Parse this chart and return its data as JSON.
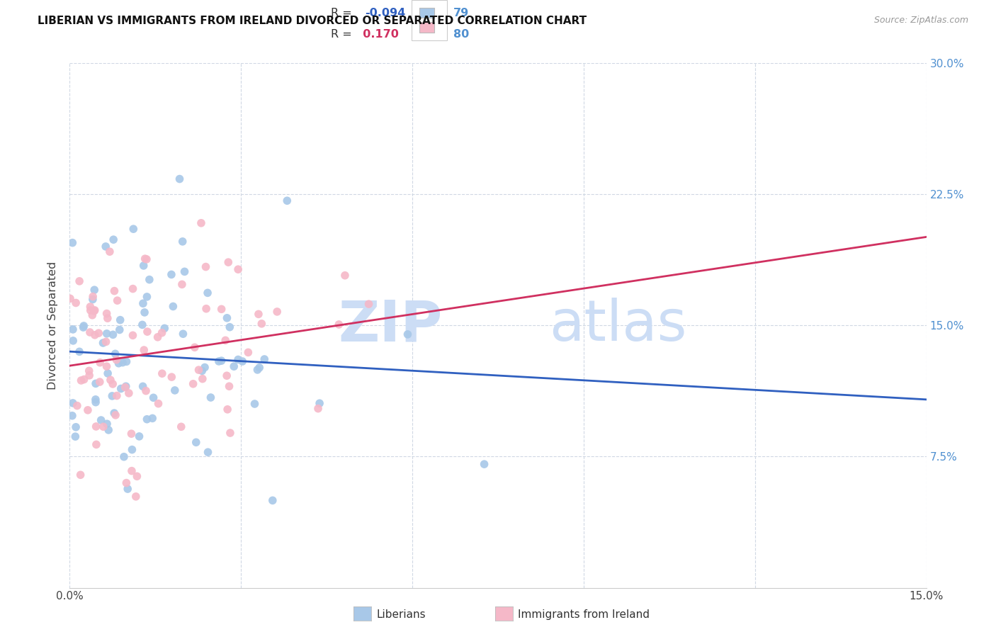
{
  "title": "LIBERIAN VS IMMIGRANTS FROM IRELAND DIVORCED OR SEPARATED CORRELATION CHART",
  "source": "Source: ZipAtlas.com",
  "ylabel": "Divorced or Separated",
  "xmin": 0.0,
  "xmax": 0.15,
  "ymin": 0.0,
  "ymax": 0.3,
  "yticks": [
    0.075,
    0.15,
    0.225,
    0.3
  ],
  "ytick_labels": [
    "7.5%",
    "15.0%",
    "22.5%",
    "30.0%"
  ],
  "blue_R": -0.094,
  "blue_N": 79,
  "pink_R": 0.17,
  "pink_N": 80,
  "blue_color": "#a8c8e8",
  "pink_color": "#f5b8c8",
  "blue_line_color": "#3060c0",
  "pink_line_color": "#d03060",
  "watermark_color": "#ccddf5",
  "legend_R_blue": "-0.094",
  "legend_N_blue": "79",
  "legend_R_pink": "0.170",
  "legend_N_pink": "80",
  "bottom_legend_blue": "Liberians",
  "bottom_legend_pink": "Immigrants from Ireland",
  "seed_blue": 7,
  "seed_pink": 13
}
